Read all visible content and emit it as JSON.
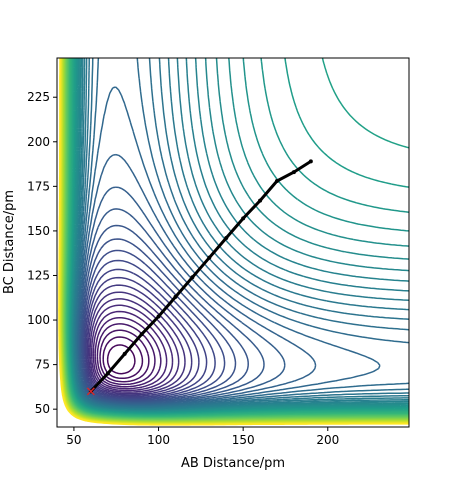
{
  "chart_data": {
    "type": "contour",
    "xlabel": "AB Distance/pm",
    "ylabel": "BC Distance/pm",
    "xlim": [
      40,
      248
    ],
    "ylim": [
      40,
      247
    ],
    "xticks": [
      50,
      100,
      150,
      200
    ],
    "yticks": [
      50,
      75,
      100,
      125,
      150,
      175,
      200,
      225
    ],
    "colormap": "viridis",
    "contour_levels": 60,
    "grid": false,
    "series": [
      {
        "type": "line",
        "color": "#000000",
        "x": [
          60,
          70,
          80,
          90,
          100,
          110,
          120,
          130,
          140,
          150,
          160,
          170,
          180,
          190
        ],
        "y": [
          60,
          70,
          81,
          92,
          102,
          113,
          124,
          135,
          146,
          157,
          167,
          178,
          183,
          189
        ]
      }
    ],
    "markers": [
      {
        "type": "x",
        "color": "#d62728",
        "x": 60,
        "y": 60
      }
    ]
  }
}
